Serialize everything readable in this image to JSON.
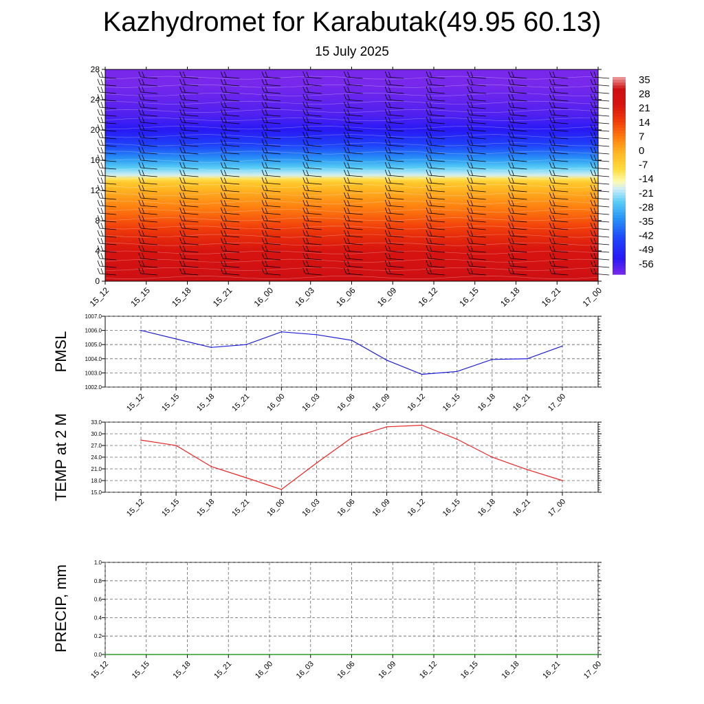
{
  "title": "Kazhydromet for Karabutak(49.95 60.13)",
  "subtitle": "15 July 2025",
  "colors": {
    "pmsl_line": "#1a1adc",
    "temp_line": "#ee2222",
    "precip_line": "#008800",
    "grid": "#666666",
    "barb": "#000000"
  },
  "chart_data": [
    {
      "type": "heatmap",
      "title": "",
      "xlabel": "",
      "ylabel": "",
      "categories": [
        "15_12",
        "15_15",
        "15_18",
        "15_21",
        "16_00",
        "16_03",
        "16_06",
        "16_09",
        "16_12",
        "16_15",
        "16_18",
        "16_21",
        "17_00"
      ],
      "y_ticks": [
        0,
        4,
        8,
        12,
        16,
        20,
        24,
        28
      ],
      "ylim": [
        0,
        28
      ],
      "colorbar_labels": [
        "35",
        "28",
        "21",
        "14",
        "7",
        "0",
        "-7",
        "-14",
        "-21",
        "-28",
        "-35",
        "-42",
        "-49",
        "-56"
      ],
      "colorbar_range": [
        -60,
        38
      ],
      "temperature_profile_by_level": [
        [
          0,
          32
        ],
        [
          2,
          28
        ],
        [
          4,
          24
        ],
        [
          6,
          19
        ],
        [
          8,
          13
        ],
        [
          10,
          7
        ],
        [
          12,
          1
        ],
        [
          13.2,
          -4
        ],
        [
          14,
          -17
        ],
        [
          16,
          -31
        ],
        [
          18,
          -43
        ],
        [
          20,
          -52
        ],
        [
          22,
          -56
        ],
        [
          24,
          -58
        ],
        [
          26,
          -60
        ],
        [
          28,
          -61
        ]
      ],
      "wind_barbs": "black barbs at each time column and level"
    },
    {
      "type": "line",
      "ylabel": "PMSL",
      "categories": [
        "15_12",
        "15_15",
        "15_18",
        "15_21",
        "16_00",
        "16_03",
        "16_06",
        "16_09",
        "16_12",
        "16_15",
        "16_18",
        "16_21",
        "17_00"
      ],
      "y_ticks": [
        "1002.0",
        "1003.0",
        "1004.0",
        "1005.0",
        "1006.0",
        "1007.0"
      ],
      "ylim": [
        1002,
        1007
      ],
      "grid": true,
      "series": [
        {
          "values": [
            1006.0,
            1005.4,
            1004.8,
            1005.0,
            1005.9,
            1005.7,
            1005.3,
            1003.9,
            1002.9,
            1003.1,
            1003.95,
            1004.0,
            1004.9
          ]
        }
      ]
    },
    {
      "type": "line",
      "ylabel": "TEMP at 2 M",
      "categories": [
        "15_12",
        "15_15",
        "15_18",
        "15_21",
        "16_00",
        "16_03",
        "16_06",
        "16_09",
        "16_12",
        "16_15",
        "16_18",
        "16_21",
        "17_00"
      ],
      "y_ticks": [
        "15.0",
        "18.0",
        "21.0",
        "24.0",
        "27.0",
        "30.0",
        "33.0"
      ],
      "ylim": [
        15,
        33
      ],
      "grid": true,
      "series": [
        {
          "values": [
            28.4,
            27.0,
            21.6,
            18.7,
            15.7,
            22.5,
            29.0,
            31.8,
            32.2,
            28.6,
            24.0,
            20.8,
            18.0
          ]
        }
      ]
    },
    {
      "type": "line",
      "ylabel": "PRECIP, mm",
      "categories": [
        "15_12",
        "15_15",
        "15_18",
        "15_21",
        "16_00",
        "16_03",
        "16_06",
        "16_09",
        "16_12",
        "16_15",
        "16_18",
        "16_21",
        "17_00"
      ],
      "y_ticks": [
        "0.0",
        "0.2",
        "0.4",
        "0.6",
        "0.8",
        "1.0"
      ],
      "ylim": [
        0,
        1
      ],
      "grid": true,
      "series": [
        {
          "values": [
            0,
            0,
            0,
            0,
            0,
            0,
            0,
            0,
            0,
            0,
            0,
            0,
            0
          ]
        }
      ]
    }
  ]
}
